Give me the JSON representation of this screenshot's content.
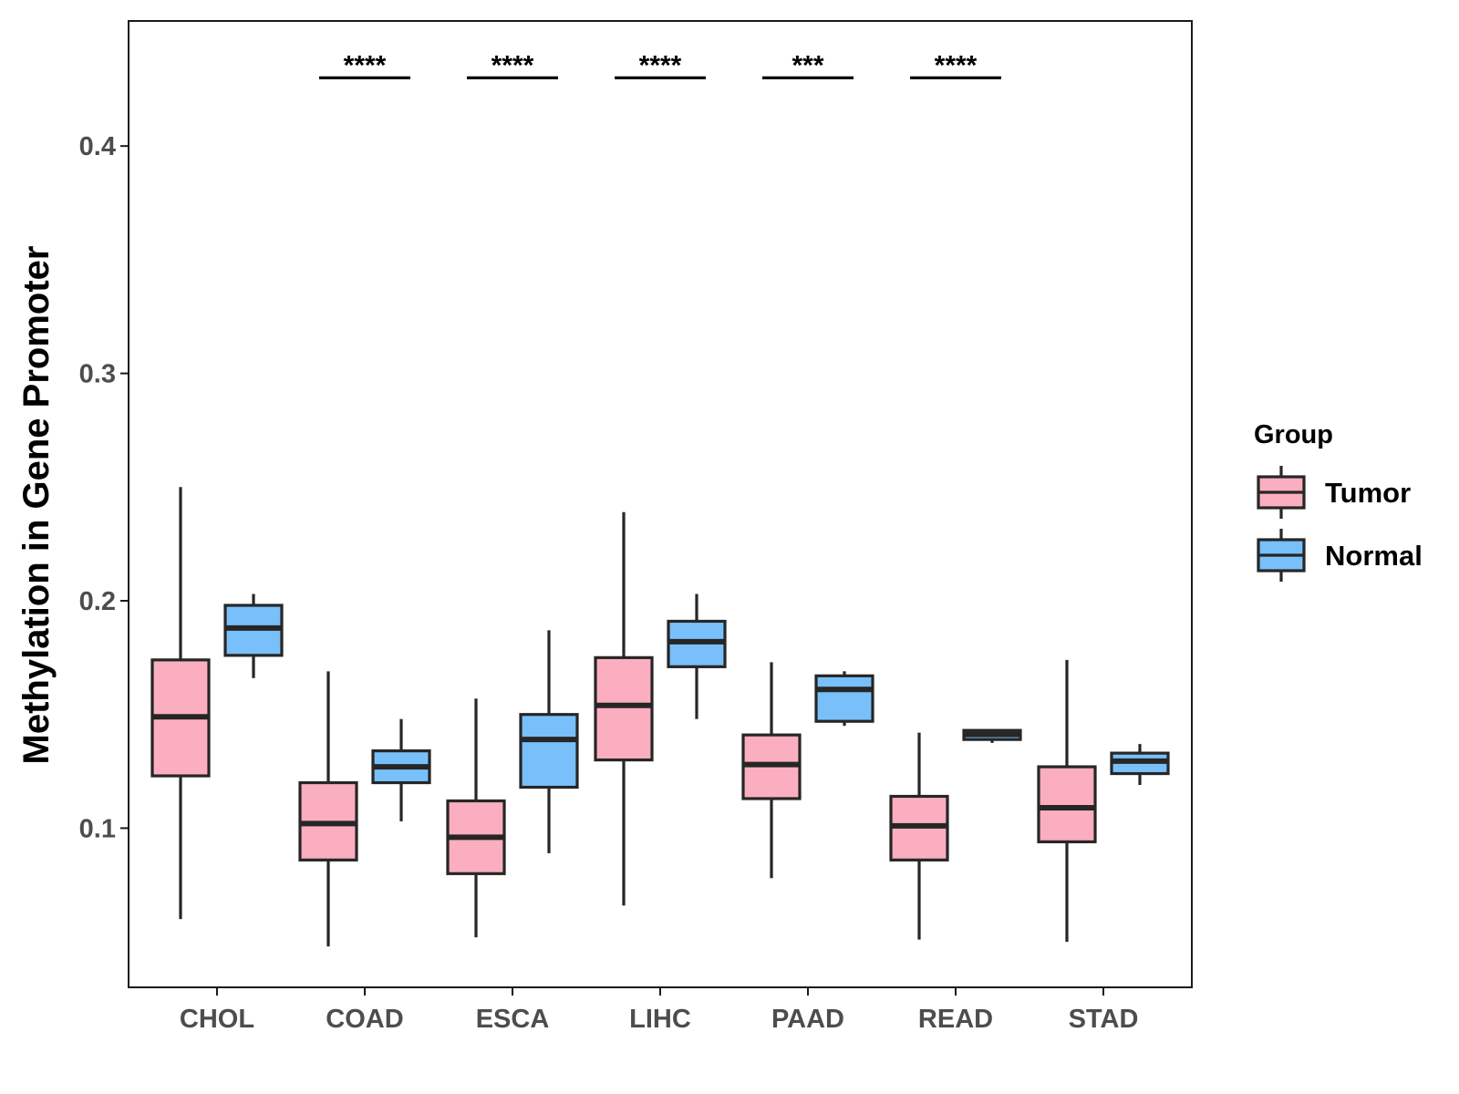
{
  "chart_data": {
    "type": "boxplot",
    "title": "",
    "xlabel": "",
    "ylabel": "Methylation in Gene Promoter",
    "ylim": [
      0.03,
      0.455
    ],
    "yticks": [
      0.1,
      0.2,
      0.3,
      0.4
    ],
    "ytick_labels": [
      "0.1",
      "0.2",
      "0.3",
      "0.4"
    ],
    "categories": [
      "CHOL",
      "COAD",
      "ESCA",
      "LIHC",
      "PAAD",
      "READ",
      "STAD"
    ],
    "legend": {
      "title": "Group",
      "position": "right",
      "entries": [
        {
          "label": "Tumor",
          "color": "#FBAEBF"
        },
        {
          "label": "Normal",
          "color": "#79C0FA"
        }
      ]
    },
    "series": [
      {
        "name": "Tumor",
        "color": "#FBAEBF",
        "boxes": [
          {
            "category": "CHOL",
            "whisker_low": 0.06,
            "q1": 0.123,
            "median": 0.149,
            "q3": 0.174,
            "whisker_high": 0.25
          },
          {
            "category": "COAD",
            "whisker_low": 0.048,
            "q1": 0.086,
            "median": 0.102,
            "q3": 0.12,
            "whisker_high": 0.169
          },
          {
            "category": "ESCA",
            "whisker_low": 0.052,
            "q1": 0.08,
            "median": 0.096,
            "q3": 0.112,
            "whisker_high": 0.157
          },
          {
            "category": "LIHC",
            "whisker_low": 0.066,
            "q1": 0.13,
            "median": 0.154,
            "q3": 0.175,
            "whisker_high": 0.239
          },
          {
            "category": "PAAD",
            "whisker_low": 0.078,
            "q1": 0.113,
            "median": 0.128,
            "q3": 0.141,
            "whisker_high": 0.173
          },
          {
            "category": "READ",
            "whisker_low": 0.051,
            "q1": 0.086,
            "median": 0.101,
            "q3": 0.114,
            "whisker_high": 0.142
          },
          {
            "category": "STAD",
            "whisker_low": 0.05,
            "q1": 0.094,
            "median": 0.109,
            "q3": 0.127,
            "whisker_high": 0.174
          }
        ]
      },
      {
        "name": "Normal",
        "color": "#79C0FA",
        "boxes": [
          {
            "category": "CHOL",
            "whisker_low": 0.166,
            "q1": 0.176,
            "median": 0.188,
            "q3": 0.198,
            "whisker_high": 0.203
          },
          {
            "category": "COAD",
            "whisker_low": 0.103,
            "q1": 0.12,
            "median": 0.127,
            "q3": 0.134,
            "whisker_high": 0.148
          },
          {
            "category": "ESCA",
            "whisker_low": 0.089,
            "q1": 0.118,
            "median": 0.139,
            "q3": 0.15,
            "whisker_high": 0.187
          },
          {
            "category": "LIHC",
            "whisker_low": 0.148,
            "q1": 0.171,
            "median": 0.182,
            "q3": 0.191,
            "whisker_high": 0.203
          },
          {
            "category": "PAAD",
            "whisker_low": 0.145,
            "q1": 0.147,
            "median": 0.161,
            "q3": 0.167,
            "whisker_high": 0.169
          },
          {
            "category": "READ",
            "whisker_low": 0.1375,
            "q1": 0.139,
            "median": 0.1412,
            "q3": 0.143,
            "whisker_high": 0.1435
          },
          {
            "category": "STAD",
            "whisker_low": 0.119,
            "q1": 0.124,
            "median": 0.1295,
            "q3": 0.133,
            "whisker_high": 0.137
          }
        ]
      }
    ],
    "significance": [
      {
        "category": "COAD",
        "label": "****"
      },
      {
        "category": "ESCA",
        "label": "****"
      },
      {
        "category": "LIHC",
        "label": "****"
      },
      {
        "category": "PAAD",
        "label": "***"
      },
      {
        "category": "READ",
        "label": "****"
      }
    ],
    "significance_y": 0.43
  }
}
